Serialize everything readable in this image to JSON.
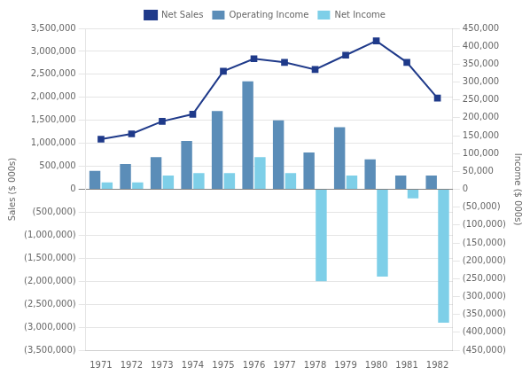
{
  "chart_data": {
    "type": "bar",
    "categories": [
      "1971",
      "1972",
      "1973",
      "1974",
      "1975",
      "1976",
      "1977",
      "1978",
      "1979",
      "1980",
      "1981",
      "1982"
    ],
    "series": [
      {
        "name": "Operating Income",
        "color": "#5b8db8",
        "values": [
          400000,
          550000,
          700000,
          1050000,
          1700000,
          2350000,
          1500000,
          800000,
          1350000,
          650000,
          300000,
          300000
        ]
      },
      {
        "name": "Net Income",
        "color": "#7ecfe8",
        "values": [
          150000,
          150000,
          300000,
          350000,
          350000,
          700000,
          350000,
          -2000000,
          300000,
          -1900000,
          -200000,
          -2900000
        ]
      },
      {
        "name": "Net Sales",
        "type": "line",
        "marker": "square",
        "axis": "y2",
        "color": "#1f3a8a",
        "values": [
          140000,
          155000,
          190000,
          210000,
          330000,
          365000,
          355000,
          335000,
          375000,
          415000,
          355000,
          255000
        ]
      }
    ],
    "ylabel": "Sales ($ 000s)",
    "y2label": "Income ($ 000s)",
    "ylim": [
      -3500000,
      3500000
    ],
    "yticks": [
      {
        "value": -3500000,
        "label": "(3,500,000)"
      },
      {
        "value": -3000000,
        "label": "(3,000,000)"
      },
      {
        "value": -2500000,
        "label": "(2,500,000)"
      },
      {
        "value": -2000000,
        "label": "(2,000,000)"
      },
      {
        "value": -1500000,
        "label": "(1,500,000)"
      },
      {
        "value": -1000000,
        "label": "(1,000,000)"
      },
      {
        "value": -500000,
        "label": "(500,000)"
      },
      0,
      {
        "value": 500000,
        "label": "500,000"
      },
      {
        "value": 1000000,
        "label": "1,000,000"
      },
      {
        "value": 1500000,
        "label": "1,500,000"
      },
      {
        "value": 2000000,
        "label": "2,000,000"
      },
      {
        "value": 2500000,
        "label": "2,500,000"
      },
      {
        "value": 3000000,
        "label": "3,000,000"
      },
      {
        "value": 3500000,
        "label": "3,500,000"
      }
    ],
    "y2lim": [
      -450000,
      450000
    ],
    "y2ticks": [
      {
        "value": -450000,
        "label": "(450,000)"
      },
      {
        "value": -400000,
        "label": "(400,000)"
      },
      {
        "value": -350000,
        "label": "(350,000)"
      },
      {
        "value": -300000,
        "label": "(300,000)"
      },
      {
        "value": -250000,
        "label": "(250,000)"
      },
      {
        "value": -200000,
        "label": "(200,000)"
      },
      {
        "value": -150000,
        "label": "(150,000)"
      },
      {
        "value": -100000,
        "label": "(100,000)"
      },
      {
        "value": -50000,
        "label": "(50,000)"
      },
      0,
      {
        "value": 50000,
        "label": "50,000"
      },
      {
        "value": 100000,
        "label": "100,000"
      },
      {
        "value": 150000,
        "label": "150,000"
      },
      {
        "value": 200000,
        "label": "200,000"
      },
      {
        "value": 250000,
        "label": "250,000"
      },
      {
        "value": 300000,
        "label": "300,000"
      },
      {
        "value": 350000,
        "label": "350,000"
      },
      {
        "value": 400000,
        "label": "400,000"
      },
      {
        "value": 450000,
        "label": "450,000"
      }
    ],
    "grid": true,
    "legend": "top"
  }
}
